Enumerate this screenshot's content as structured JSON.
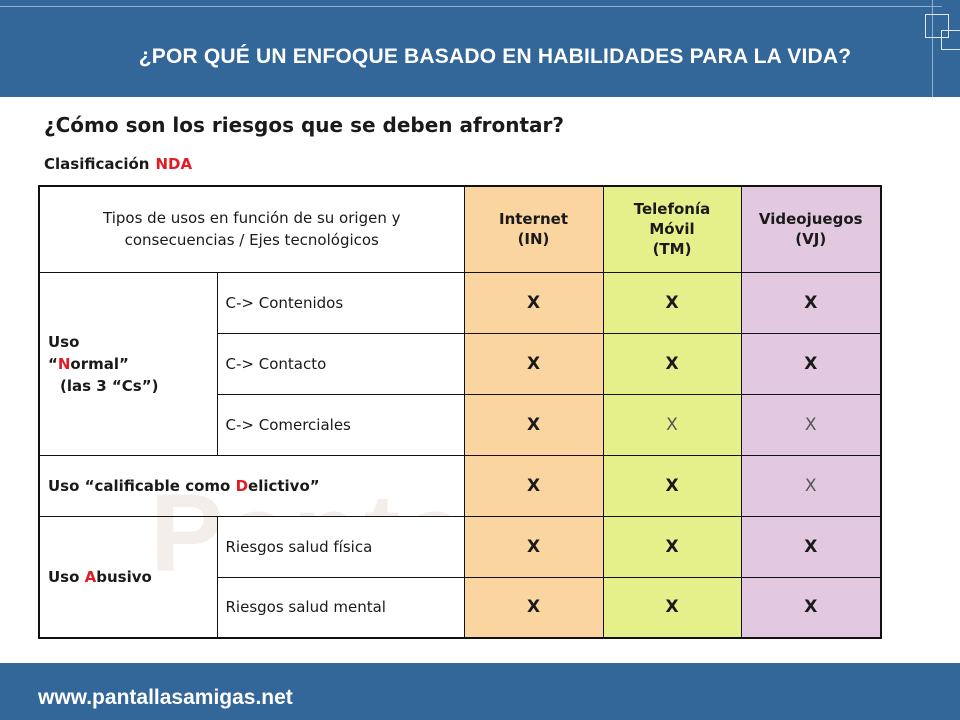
{
  "header": {
    "title": "¿POR QUÉ UN ENFOQUE BASADO EN HABILIDADES PARA LA VIDA?"
  },
  "subtitle": "¿Cómo son los riesgos que se deben afrontar?",
  "classification": {
    "label": "Clasificación",
    "highlight": "NDA"
  },
  "watermark": "Pantallas",
  "table": {
    "header": {
      "left": "Tipos de usos en función de su origen y consecuencias / Ejes tecnológicos",
      "in_l1": "Internet",
      "in_l2": "(IN)",
      "tm_l1": "Telefonía",
      "tm_l2": "Móvil",
      "tm_l3": "(TM)",
      "vj_l1": "Videojuegos",
      "vj_l2": "(VJ)"
    },
    "normal": {
      "l1": "Uso",
      "l2_pre": "“",
      "l2_red": "N",
      "l2_post": "ormal”",
      "l3": "(las 3 “Cs”)"
    },
    "rows": [
      {
        "label": "C-> Contenidos",
        "in": "X",
        "tm": "X",
        "vj": "X"
      },
      {
        "label": "C-> Contacto",
        "in": "X",
        "tm": "X",
        "vj": "X"
      },
      {
        "label": "C-> Comerciales",
        "in": "X",
        "tm": "X",
        "vj": "X"
      }
    ],
    "delictivo": {
      "pre": "Uso “calificable como ",
      "red": "D",
      "post": "elictivo”",
      "in": "X",
      "tm": "X",
      "vj": "X"
    },
    "abusivo": {
      "pre": "Uso ",
      "red": "A",
      "post": "busivo",
      "rows": [
        {
          "label": "Riesgos salud física",
          "in": "X",
          "tm": "X",
          "vj": "X"
        },
        {
          "label": "Riesgos salud mental",
          "in": "X",
          "tm": "X",
          "vj": "X"
        }
      ]
    }
  },
  "footer": {
    "url": "www.pantallasamigas.net"
  },
  "colors": {
    "header_bg": "#336699",
    "internet": "#fbd5a0",
    "telefonia": "#e6f08a",
    "videojuegos": "#e2c9e0",
    "accent_red": "#e31b23"
  }
}
